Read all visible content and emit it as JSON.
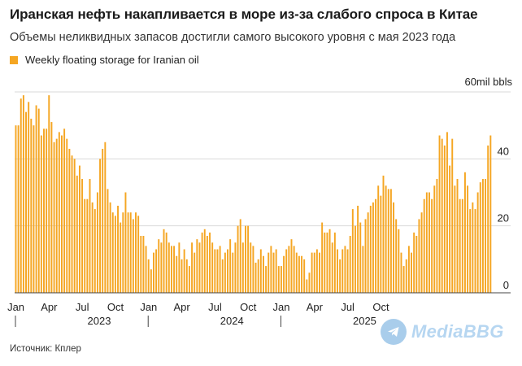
{
  "header": {
    "title": "Иранская нефть накапливается в море из-за слабого спроса в Китае",
    "subtitle": "Объемы неликвидных запасов достигли самого высокого уровня с мая 2023 года"
  },
  "source": "Источник: Кплер",
  "watermark": {
    "text": "MediaBBG",
    "icon": "telegram-icon"
  },
  "chart_data": {
    "type": "bar",
    "series": [
      {
        "name": "Weekly floating storage for Iranian oil",
        "color": "#f5a623",
        "values": [
          50,
          50,
          58,
          59,
          54,
          57,
          52,
          50,
          56,
          55,
          47,
          49,
          49,
          59,
          51,
          45,
          46,
          48,
          47,
          49,
          46,
          43,
          41,
          40,
          35,
          38,
          34,
          28,
          28,
          34,
          27,
          25,
          30,
          40,
          43,
          45,
          31,
          27,
          24,
          23,
          26,
          21,
          24,
          30,
          24,
          24,
          22,
          24,
          23,
          17,
          17,
          14,
          10,
          7,
          12,
          13,
          16,
          15,
          19,
          18,
          15,
          14,
          14,
          11,
          15,
          10,
          13,
          10,
          8,
          15,
          12,
          16,
          15,
          18,
          19,
          17,
          18,
          15,
          13,
          13,
          14,
          10,
          12,
          13,
          16,
          12,
          15,
          20,
          22,
          15,
          20,
          20,
          15,
          14,
          9,
          10,
          13,
          11,
          8,
          12,
          14,
          12,
          13,
          8,
          8,
          11,
          13,
          14,
          16,
          14,
          12,
          11,
          11,
          10,
          4,
          6,
          12,
          12,
          13,
          12,
          21,
          18,
          18,
          19,
          15,
          18,
          13,
          10,
          13,
          14,
          13,
          17,
          25,
          20,
          26,
          21,
          14,
          22,
          24,
          26,
          27,
          28,
          32,
          29,
          35,
          32,
          31,
          31,
          27,
          22,
          19,
          12,
          8,
          10,
          14,
          12,
          18,
          17,
          22,
          24,
          28,
          30,
          30,
          28,
          32,
          34,
          47,
          46,
          44,
          48,
          38,
          46,
          32,
          34,
          28,
          28,
          36,
          32,
          25,
          27,
          25,
          30,
          33,
          34,
          34,
          44,
          47
        ]
      }
    ],
    "y_ticks": [
      0,
      20,
      40
    ],
    "unit_label": "60mil bbls",
    "ylim": [
      0,
      60
    ],
    "x_ticks": [
      {
        "label": "Jan",
        "index": 0
      },
      {
        "label": "Apr",
        "index": 13
      },
      {
        "label": "Jul",
        "index": 26
      },
      {
        "label": "Oct",
        "index": 39
      },
      {
        "label": "Jan",
        "index": 52
      },
      {
        "label": "Apr",
        "index": 65
      },
      {
        "label": "Jul",
        "index": 78
      },
      {
        "label": "Oct",
        "index": 91
      },
      {
        "label": "Jan",
        "index": 104
      },
      {
        "label": "Apr",
        "index": 117
      },
      {
        "label": "Jul",
        "index": 130
      },
      {
        "label": "Oct",
        "index": 143
      }
    ],
    "years": [
      {
        "label": "2023",
        "index": 0
      },
      {
        "label": "2024",
        "index": 52
      },
      {
        "label": "2025",
        "index": 104
      }
    ],
    "grid": true,
    "legend_position": "top-left"
  }
}
